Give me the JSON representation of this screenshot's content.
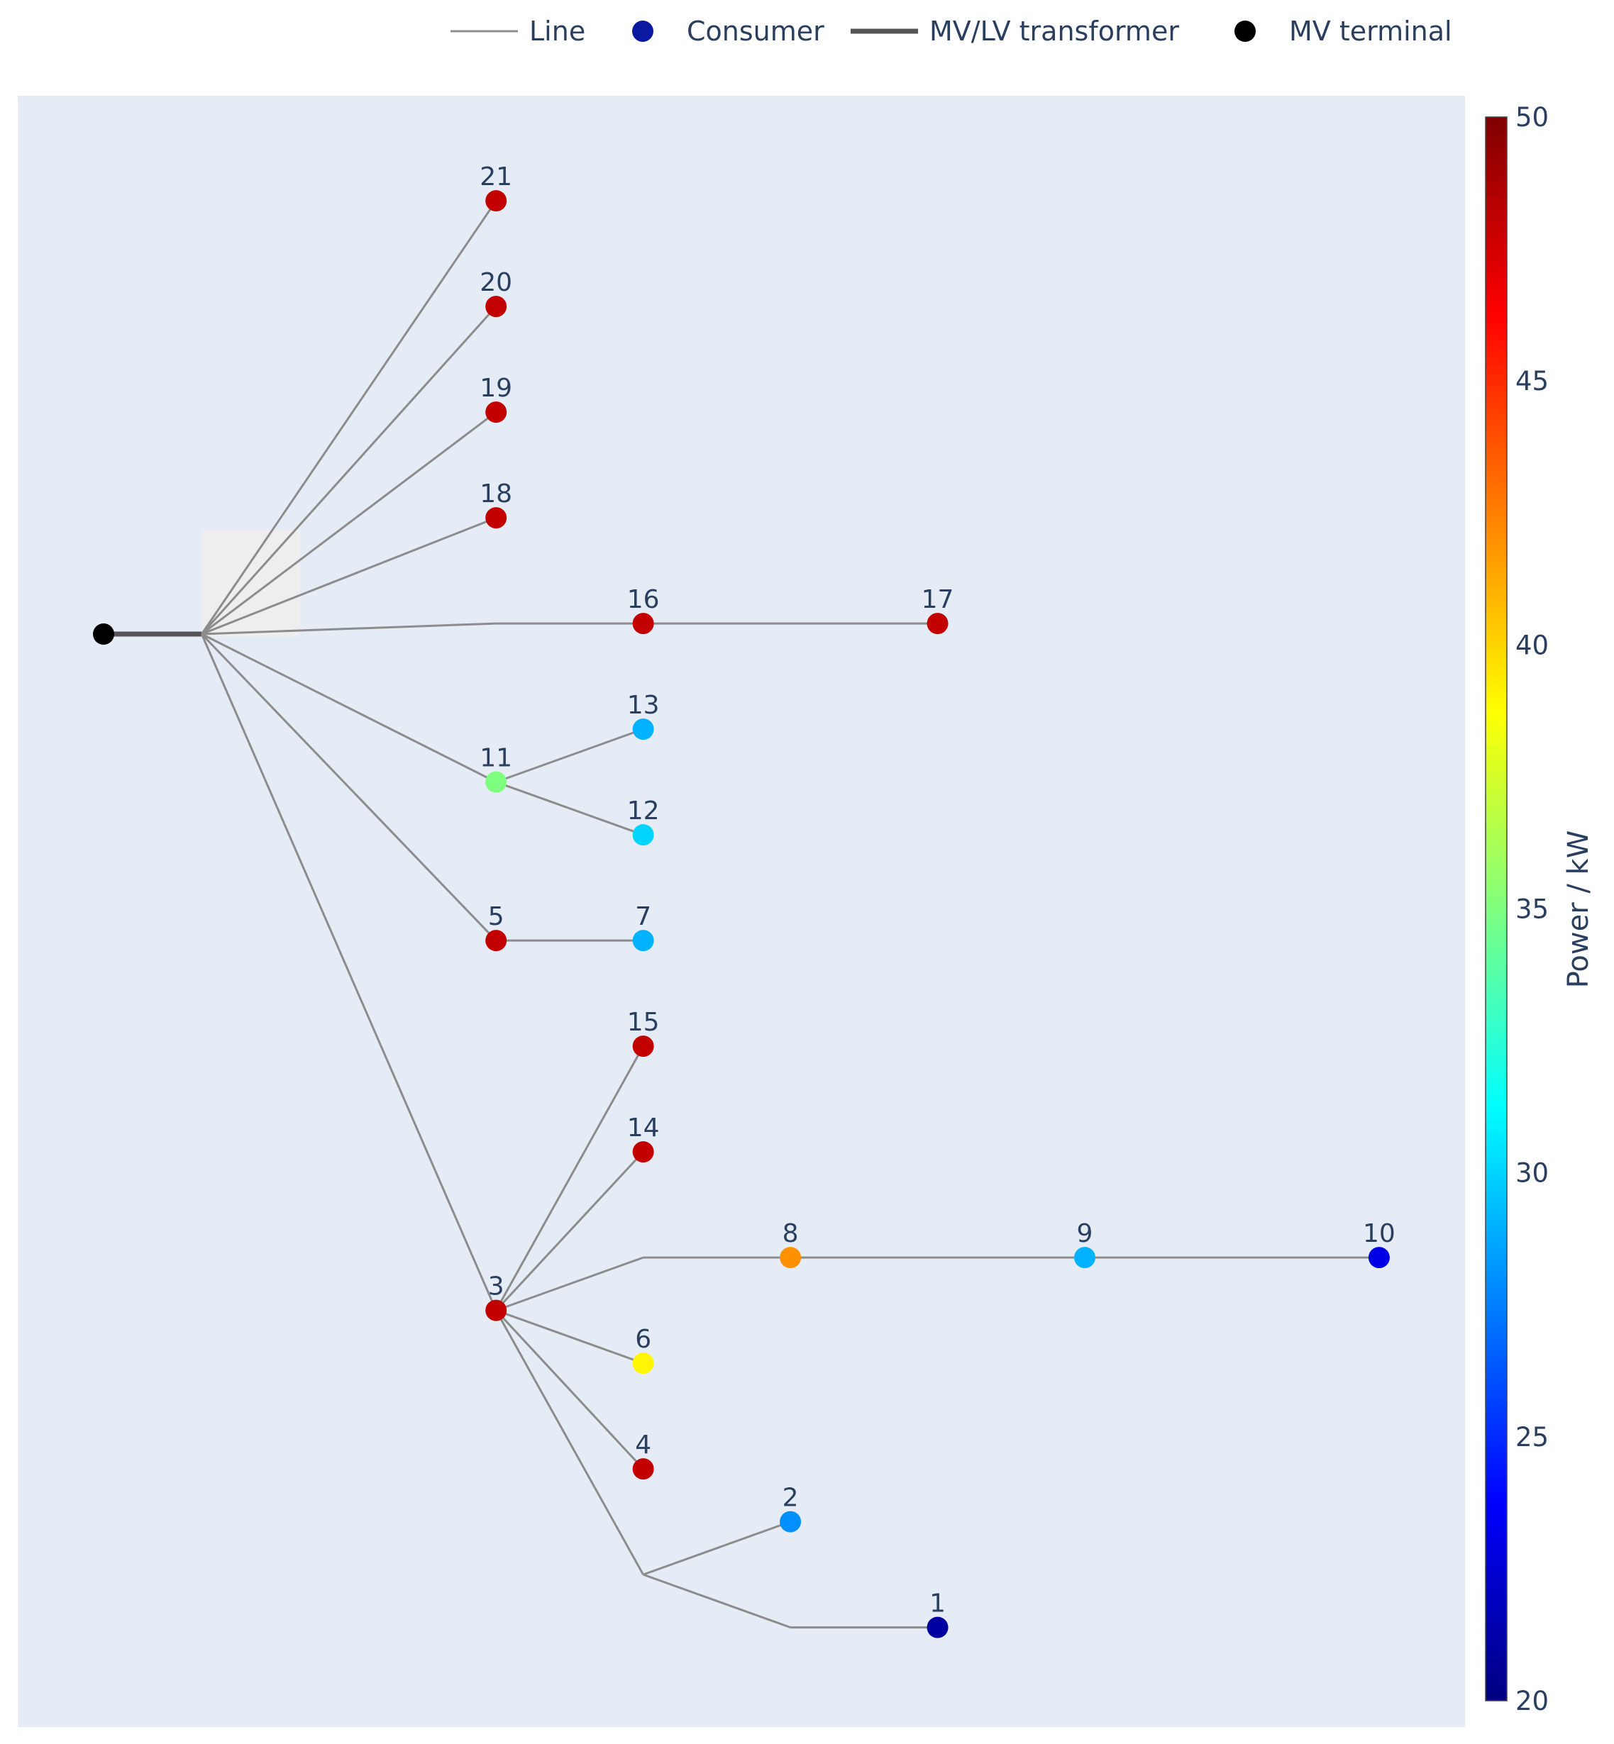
{
  "legend": {
    "items": [
      {
        "label": "Line",
        "symbol": "thin-line-icon"
      },
      {
        "label": "Consumer",
        "symbol": "blue-dot-icon"
      },
      {
        "label": "MV/LV transformer",
        "symbol": "thick-line-icon"
      },
      {
        "label": "MV terminal",
        "symbol": "black-dot-icon"
      }
    ]
  },
  "colorbar": {
    "title": "Power / kW",
    "min": 20,
    "max": 50,
    "ticks": [
      "50",
      "45",
      "40",
      "35",
      "30",
      "25",
      "20"
    ],
    "tick_values": [
      50,
      45,
      40,
      35,
      30,
      25,
      20
    ],
    "colorscale": [
      "#00007f",
      "#0000ff",
      "#007fff",
      "#00ffff",
      "#7fff7f",
      "#ffff00",
      "#ff7f00",
      "#ff0000",
      "#7f0000"
    ]
  },
  "colors": {
    "plot_bg": "#e5ecf6",
    "line": "#8c8c8c",
    "transformer": "#555555",
    "mv_terminal": "#000000",
    "consumer_legend": "#0a1aa0"
  },
  "chart_data": {
    "type": "network",
    "value_unit": "kW",
    "nodes": [
      {
        "id": "mv",
        "x": 0,
        "y": 0
      },
      {
        "id": "lv",
        "x": 1,
        "y": 0
      },
      {
        "id": "j16",
        "x": 4,
        "y": 0.1
      },
      {
        "id": "j8",
        "x": 5.5,
        "y": -5.9
      },
      {
        "id": "j12",
        "x": 5.5,
        "y": -8.9
      },
      {
        "id": "j1",
        "x": 7,
        "y": -9.4
      },
      {
        "id": "1",
        "label": "1",
        "x": 8.5,
        "y": -9.4,
        "power": 21
      },
      {
        "id": "2",
        "label": "2",
        "x": 7,
        "y": -8.4,
        "power": 28
      },
      {
        "id": "3",
        "label": "3",
        "x": 4,
        "y": -6.4,
        "power": 48
      },
      {
        "id": "4",
        "label": "4",
        "x": 5.5,
        "y": -7.9,
        "power": 48
      },
      {
        "id": "5",
        "label": "5",
        "x": 4,
        "y": -2.9,
        "power": 48
      },
      {
        "id": "6",
        "label": "6",
        "x": 5.5,
        "y": -6.9,
        "power": 39
      },
      {
        "id": "7",
        "label": "7",
        "x": 5.5,
        "y": -2.9,
        "power": 29
      },
      {
        "id": "8",
        "label": "8",
        "x": 7,
        "y": -5.9,
        "power": 42
      },
      {
        "id": "9",
        "label": "9",
        "x": 10,
        "y": -5.9,
        "power": 29
      },
      {
        "id": "10",
        "label": "10",
        "x": 13,
        "y": -5.9,
        "power": 23
      },
      {
        "id": "11",
        "label": "11",
        "x": 4,
        "y": -1.4,
        "power": 35
      },
      {
        "id": "12",
        "label": "12",
        "x": 5.5,
        "y": -1.9,
        "power": 30
      },
      {
        "id": "13",
        "label": "13",
        "x": 5.5,
        "y": -0.9,
        "power": 29
      },
      {
        "id": "14",
        "label": "14",
        "x": 5.5,
        "y": -4.9,
        "power": 48
      },
      {
        "id": "15",
        "label": "15",
        "x": 5.5,
        "y": -3.9,
        "power": 48
      },
      {
        "id": "16",
        "label": "16",
        "x": 5.5,
        "y": 0.1,
        "power": 48
      },
      {
        "id": "17",
        "label": "17",
        "x": 8.5,
        "y": 0.1,
        "power": 48
      },
      {
        "id": "18",
        "label": "18",
        "x": 4,
        "y": 1.1,
        "power": 48
      },
      {
        "id": "19",
        "label": "19",
        "x": 4,
        "y": 2.1,
        "power": 48
      },
      {
        "id": "20",
        "label": "20",
        "x": 4,
        "y": 3.1,
        "power": 48
      },
      {
        "id": "21",
        "label": "21",
        "x": 4,
        "y": 4.1,
        "power": 48
      }
    ],
    "transformer_edges": [
      [
        "mv",
        "lv"
      ]
    ],
    "line_edges": [
      [
        "lv",
        "21"
      ],
      [
        "lv",
        "20"
      ],
      [
        "lv",
        "19"
      ],
      [
        "lv",
        "18"
      ],
      [
        "lv",
        "j16"
      ],
      [
        "j16",
        "16"
      ],
      [
        "16",
        "17"
      ],
      [
        "lv",
        "11"
      ],
      [
        "11",
        "13"
      ],
      [
        "11",
        "12"
      ],
      [
        "lv",
        "5"
      ],
      [
        "5",
        "7"
      ],
      [
        "lv",
        "3"
      ],
      [
        "3",
        "15"
      ],
      [
        "3",
        "14"
      ],
      [
        "3",
        "j8"
      ],
      [
        "j8",
        "8"
      ],
      [
        "8",
        "9"
      ],
      [
        "9",
        "10"
      ],
      [
        "3",
        "6"
      ],
      [
        "3",
        "4"
      ],
      [
        "3",
        "j12"
      ],
      [
        "j12",
        "2"
      ],
      [
        "j12",
        "j1"
      ],
      [
        "j1",
        "1"
      ]
    ]
  }
}
